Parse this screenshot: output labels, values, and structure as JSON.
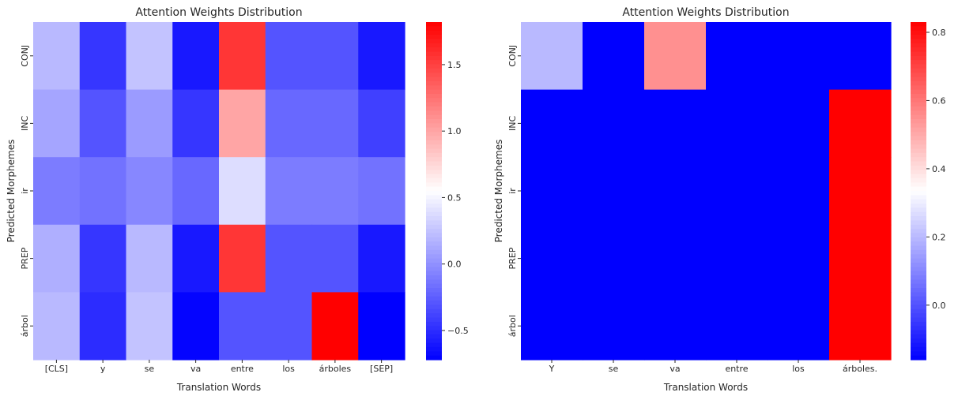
{
  "chart_data": [
    {
      "type": "heatmap",
      "title": "Attention Weights Distribution",
      "xlabel": "Translation Words",
      "ylabel": "Predicted Morphemes",
      "x_categories": [
        "[CLS]",
        "y",
        "se",
        "va",
        "entre",
        "los",
        "árboles",
        "[SEP]"
      ],
      "y_categories": [
        "CONJ",
        "INC",
        "ir",
        "PREP",
        "árbol"
      ],
      "values": [
        [
          0.2,
          -0.45,
          0.25,
          -0.6,
          1.55,
          -0.3,
          -0.3,
          -0.6
        ],
        [
          0.1,
          -0.3,
          0.05,
          -0.45,
          1.0,
          -0.2,
          -0.2,
          -0.4
        ],
        [
          -0.1,
          -0.15,
          -0.05,
          -0.2,
          0.38,
          -0.1,
          -0.1,
          -0.15
        ],
        [
          0.15,
          -0.45,
          0.2,
          -0.6,
          1.55,
          -0.3,
          -0.3,
          -0.6
        ],
        [
          0.2,
          -0.5,
          0.25,
          -0.7,
          -0.3,
          -0.3,
          1.82,
          -0.72
        ]
      ],
      "colormap": "bwr",
      "colors": {
        "low": "#0000ff",
        "mid": "#ffffff",
        "high": "#ff0000"
      },
      "vmin": -0.72,
      "vmax": 1.82,
      "colorbar_ticks": [
        -0.5,
        0.0,
        0.5,
        1.0,
        1.5
      ],
      "colorbar_tick_labels": [
        "−0.5",
        "0.0",
        "0.5",
        "1.0",
        "1.5"
      ]
    },
    {
      "type": "heatmap",
      "title": "Attention Weights Distribution",
      "xlabel": "Translation Words",
      "ylabel": "Predicted Morphemes",
      "x_categories": [
        "Y",
        "se",
        "va",
        "entre",
        "los",
        "árboles."
      ],
      "y_categories": [
        "CONJ",
        "INC",
        "ir",
        "PREP",
        "árbol"
      ],
      "values": [
        [
          0.2,
          -0.16,
          0.55,
          -0.16,
          -0.16,
          -0.16
        ],
        [
          -0.16,
          -0.16,
          -0.16,
          -0.16,
          -0.16,
          0.83
        ],
        [
          -0.16,
          -0.16,
          -0.16,
          -0.16,
          -0.16,
          0.83
        ],
        [
          -0.16,
          -0.16,
          -0.16,
          -0.16,
          -0.16,
          0.83
        ],
        [
          -0.16,
          -0.16,
          -0.16,
          -0.16,
          -0.16,
          0.83
        ]
      ],
      "colormap": "bwr",
      "colors": {
        "low": "#0000ff",
        "mid": "#ffffff",
        "high": "#ff0000"
      },
      "vmin": -0.16,
      "vmax": 0.83,
      "colorbar_ticks": [
        0.0,
        0.2,
        0.4,
        0.6,
        0.8
      ],
      "colorbar_tick_labels": [
        "0.0",
        "0.2",
        "0.4",
        "0.6",
        "0.8"
      ]
    }
  ]
}
